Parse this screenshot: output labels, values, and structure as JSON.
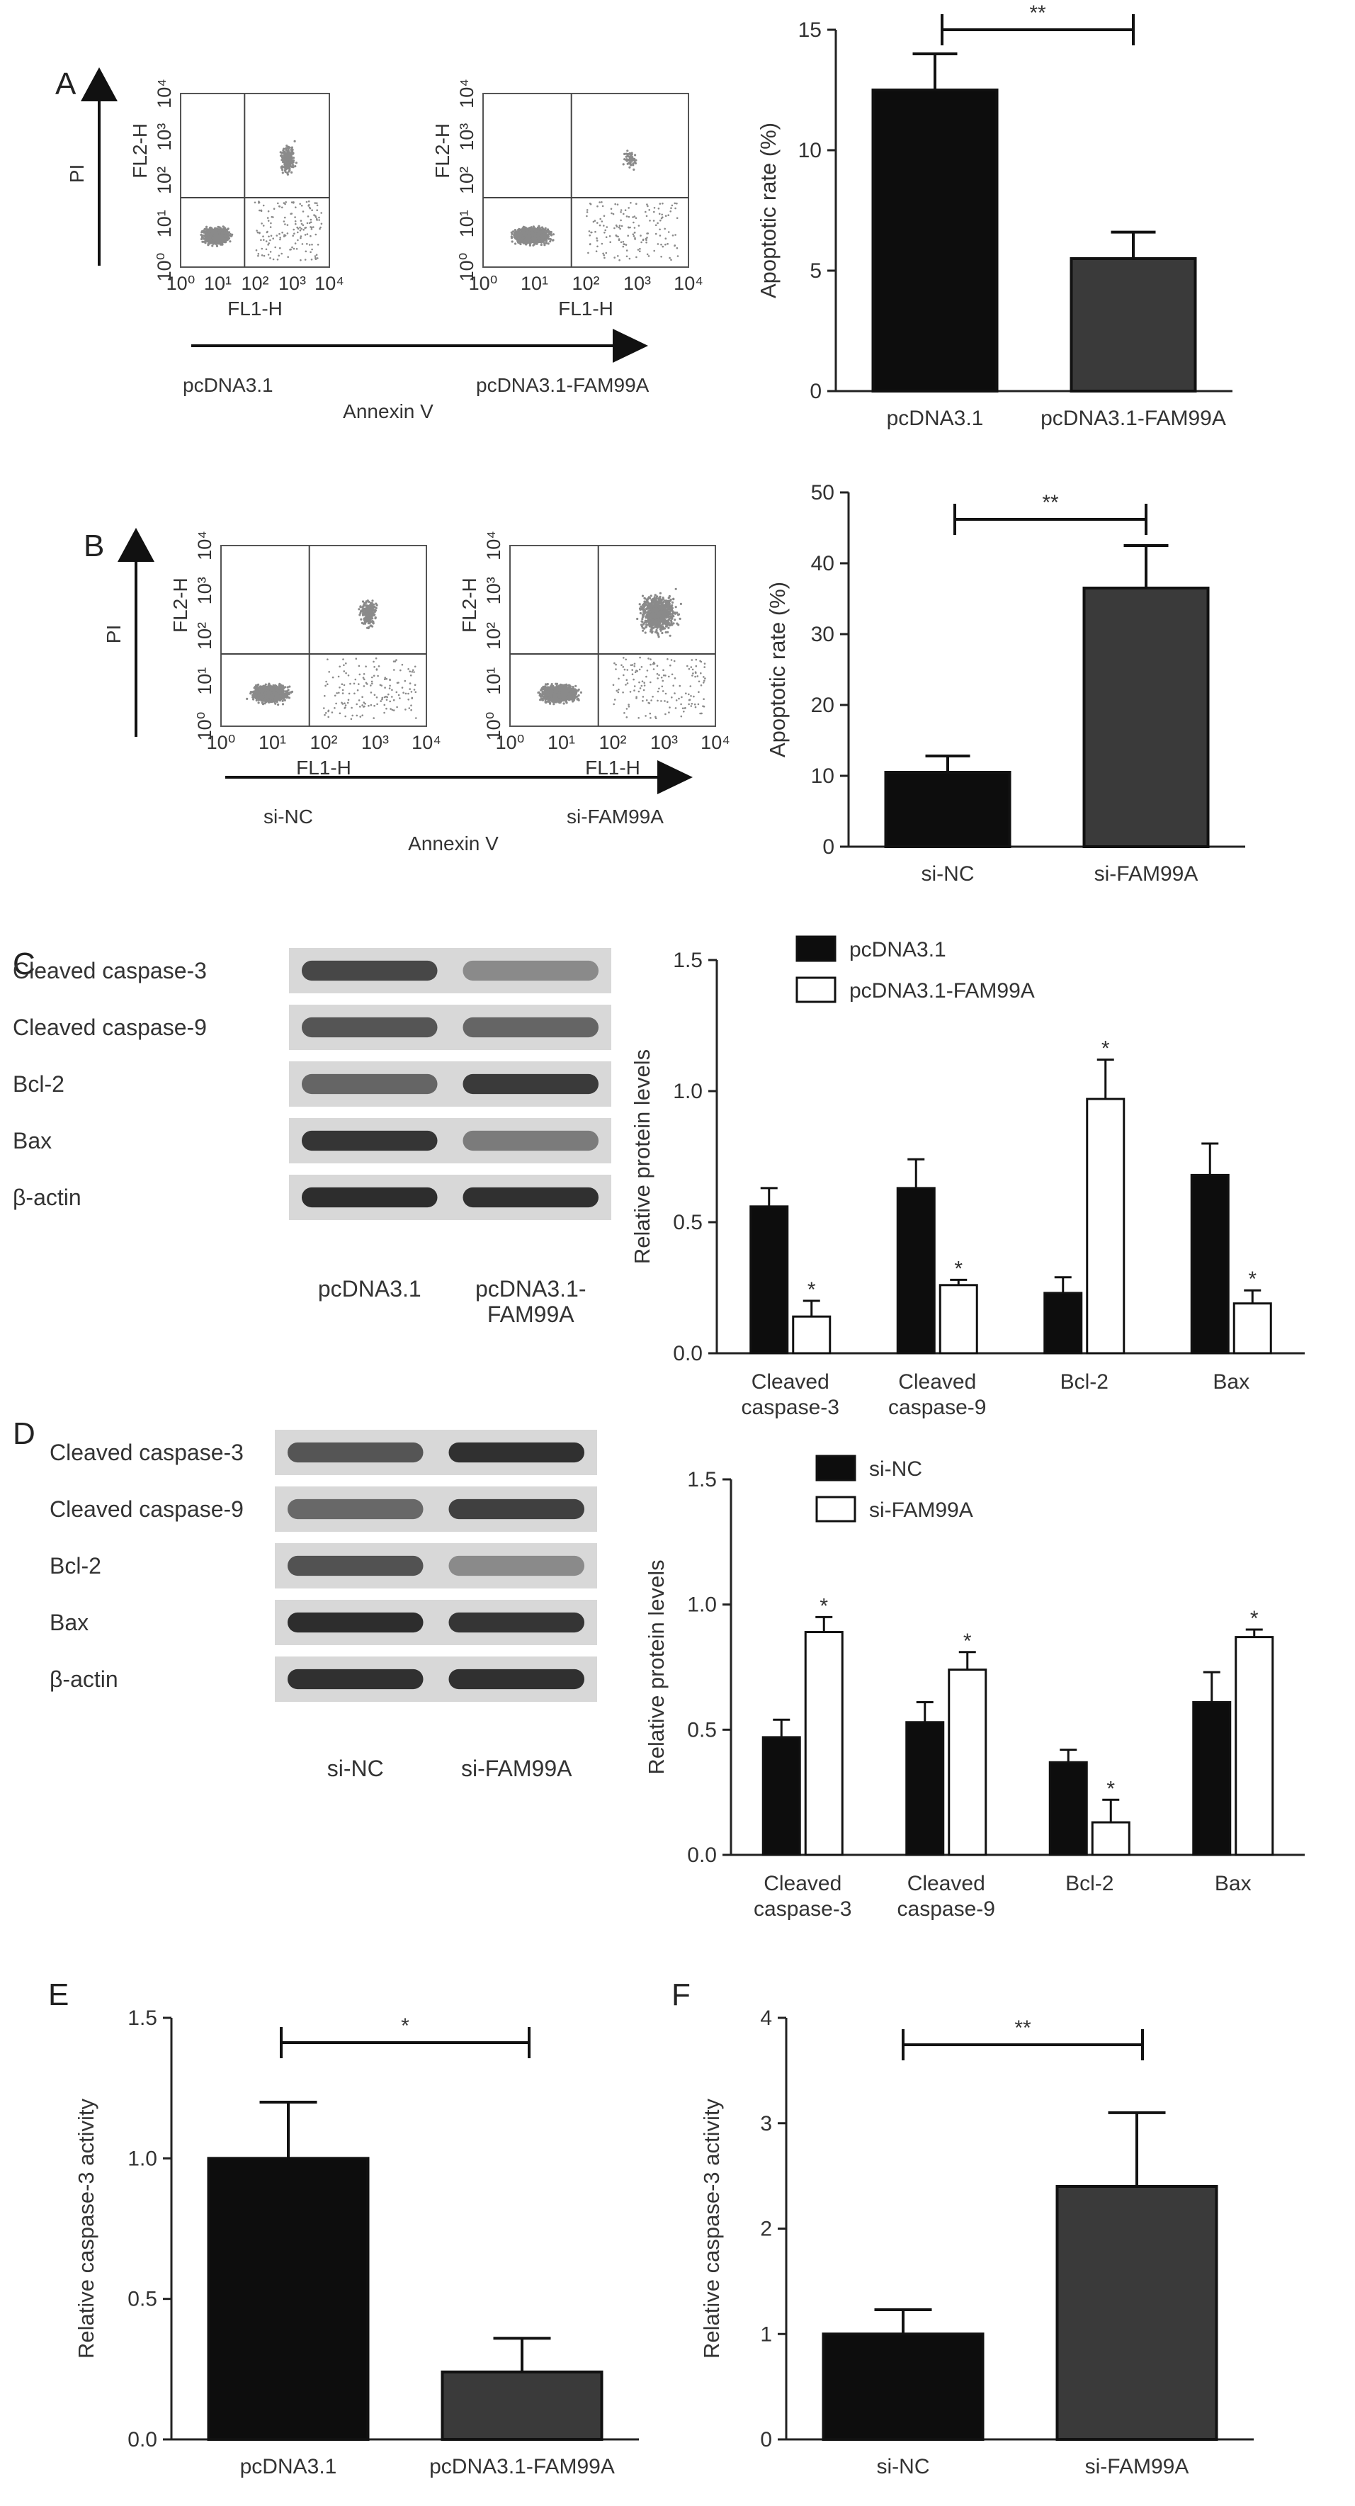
{
  "panels": {
    "A": {
      "letter": "A",
      "flow": {
        "y_axis": "PI",
        "x_axis": "Annexin V",
        "plot_x_label": "FL1-H",
        "plot_y_label": "FL2-H",
        "tick_labels": [
          "10⁰",
          "10¹",
          "10²",
          "10³",
          "10⁴"
        ],
        "samples": [
          "pcDNA3.1",
          "pcDNA3.1-FAM99A"
        ]
      }
    },
    "B": {
      "letter": "B",
      "flow": {
        "y_axis": "PI",
        "x_axis": "Annexin V",
        "plot_x_label": "FL1-H",
        "plot_y_label": "FL2-H",
        "tick_labels": [
          "10⁰",
          "10¹",
          "10²",
          "10³",
          "10⁴"
        ],
        "samples": [
          "si-NC",
          "si-FAM99A"
        ]
      }
    },
    "C": {
      "letter": "C",
      "blot_bands": [
        "Cleaved caspase-3",
        "Cleaved caspase-9",
        "Bcl-2",
        "Bax",
        "β-actin"
      ],
      "blot_lanes": [
        "pcDNA3.1",
        "pcDNA3.1-\nFAM99A"
      ]
    },
    "D": {
      "letter": "D",
      "blot_bands": [
        "Cleaved caspase-3",
        "Cleaved caspase-9",
        "Bcl-2",
        "Bax",
        "β-actin"
      ],
      "blot_lanes": [
        "si-NC",
        "si-FAM99A"
      ]
    },
    "E": {
      "letter": "E"
    },
    "F": {
      "letter": "F"
    }
  },
  "chart_data": [
    {
      "id": "A",
      "type": "bar",
      "categories": [
        "pcDNA3.1",
        "pcDNA3.1-FAM99A"
      ],
      "values": [
        12.5,
        5.5
      ],
      "errors": [
        1.5,
        1.1
      ],
      "ylabel": "Apoptotic rate (%)",
      "ylim": [
        0,
        15
      ],
      "yticks": [
        0,
        5,
        10,
        15
      ],
      "significance": "**",
      "colors": [
        "#0d0d0d",
        "#3a3a3a"
      ]
    },
    {
      "id": "B",
      "type": "bar",
      "categories": [
        "si-NC",
        "si-FAM99A"
      ],
      "values": [
        10.5,
        36.5
      ],
      "errors": [
        2.3,
        6
      ],
      "ylabel": "Apoptotic rate (%)",
      "ylim": [
        0,
        50
      ],
      "yticks": [
        0,
        10,
        20,
        30,
        40,
        50
      ],
      "significance": "**",
      "colors": [
        "#0d0d0d",
        "#3a3a3a"
      ]
    },
    {
      "id": "C",
      "type": "bar",
      "categories": [
        "Cleaved\ncaspase-3",
        "Cleaved\ncaspase-9",
        "Bcl-2",
        "Bax"
      ],
      "series": [
        {
          "name": "pcDNA3.1",
          "values": [
            0.56,
            0.63,
            0.23,
            0.68
          ],
          "errors": [
            0.07,
            0.11,
            0.06,
            0.12
          ],
          "marks": [
            "",
            "",
            "",
            ""
          ]
        },
        {
          "name": "pcDNA3.1-FAM99A",
          "values": [
            0.14,
            0.26,
            0.97,
            0.19
          ],
          "errors": [
            0.06,
            0.02,
            0.15,
            0.05
          ],
          "marks": [
            "*",
            "*",
            "*",
            "*"
          ]
        }
      ],
      "ylabel": "Relative protein levels",
      "ylim": [
        0,
        1.5
      ],
      "yticks": [
        "0.0",
        "0.5",
        "1.0",
        "1.5"
      ],
      "legend": "top-left",
      "colors": [
        "#0d0d0d",
        "#ffffff"
      ]
    },
    {
      "id": "D",
      "type": "bar",
      "categories": [
        "Cleaved\ncaspase-3",
        "Cleaved\ncaspase-9",
        "Bcl-2",
        "Bax"
      ],
      "series": [
        {
          "name": "si-NC",
          "values": [
            0.47,
            0.53,
            0.37,
            0.61
          ],
          "errors": [
            0.07,
            0.08,
            0.05,
            0.12
          ],
          "marks": [
            "",
            "",
            "",
            ""
          ]
        },
        {
          "name": "si-FAM99A",
          "values": [
            0.89,
            0.74,
            0.13,
            0.87
          ],
          "errors": [
            0.06,
            0.07,
            0.09,
            0.03
          ],
          "marks": [
            "*",
            "*",
            "*",
            "*"
          ]
        }
      ],
      "ylabel": "Relative protein levels",
      "ylim": [
        0,
        1.5
      ],
      "yticks": [
        "0.0",
        "0.5",
        "1.0",
        "1.5"
      ],
      "legend": "top-left",
      "colors": [
        "#0d0d0d",
        "#ffffff"
      ]
    },
    {
      "id": "E",
      "type": "bar",
      "categories": [
        "pcDNA3.1",
        "pcDNA3.1-FAM99A"
      ],
      "values": [
        1.0,
        0.24
      ],
      "errors": [
        0.2,
        0.12
      ],
      "ylabel": "Relative caspase-3 activity",
      "ylim": [
        0,
        1.5
      ],
      "yticks": [
        "0.0",
        "0.5",
        "1.0",
        "1.5"
      ],
      "significance": "*",
      "colors": [
        "#0d0d0d",
        "#3a3a3a"
      ]
    },
    {
      "id": "F",
      "type": "bar",
      "categories": [
        "si-NC",
        "si-FAM99A"
      ],
      "values": [
        1.0,
        2.4
      ],
      "errors": [
        0.23,
        0.7
      ],
      "ylabel": "Relative caspase-3 activity",
      "ylim": [
        0,
        4
      ],
      "yticks": [
        0,
        1,
        2,
        3,
        4
      ],
      "significance": "**",
      "colors": [
        "#0d0d0d",
        "#3a3a3a"
      ]
    }
  ]
}
